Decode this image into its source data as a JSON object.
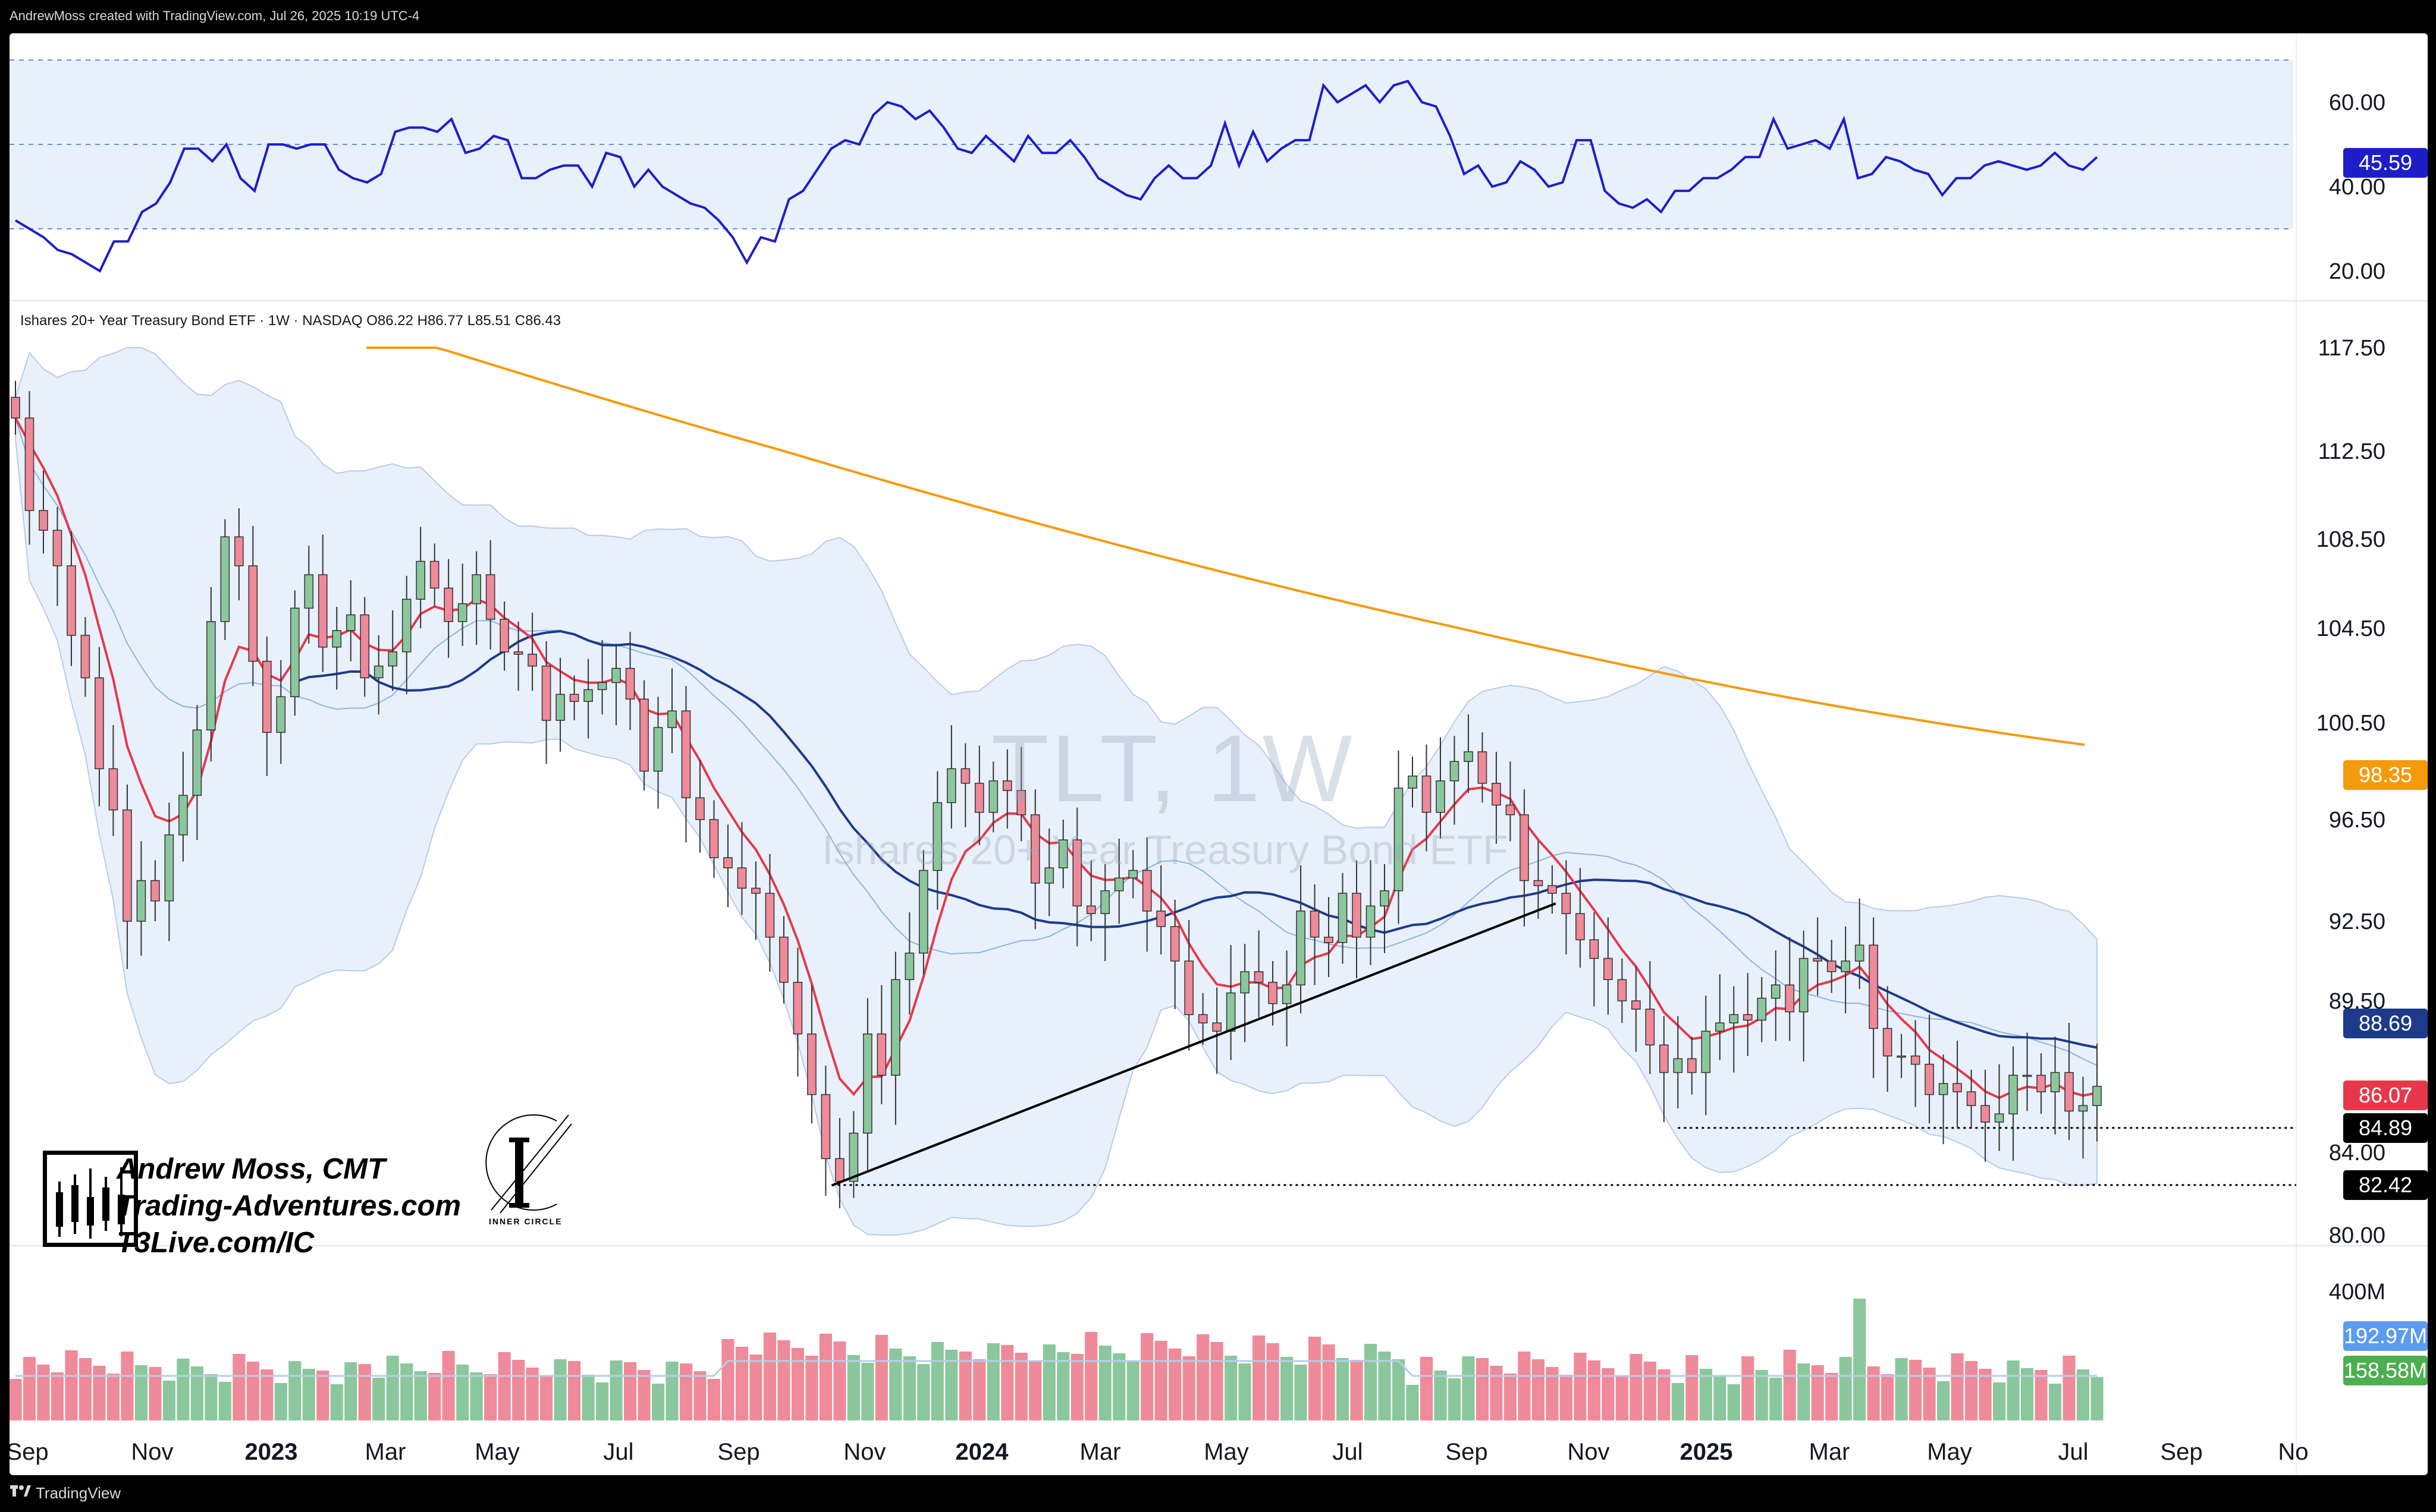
{
  "header": {
    "credit": "AndrewMoss created with TradingView.com, Jul 26, 2025 10:19 UTC-4"
  },
  "symbol_line": {
    "text": "Ishares 20+ Year Treasury Bond ETF · 1W · NASDAQ  O86.22  H86.77  L85.51  C86.43"
  },
  "watermark": {
    "main": "TLT, 1W",
    "sub": "Ishares 20+ Year Treasury Bond ETF"
  },
  "branding": {
    "line1": "Andrew Moss, CMT",
    "line2": "Trading-Adventures.com",
    "line3": "T3Live.com/IC",
    "inner_circle": "INNER CIRCLE"
  },
  "footer": {
    "label": "TradingView"
  },
  "colors": {
    "up": "#8bc79c",
    "down": "#ef8a9a",
    "ema_red": "#e5394b",
    "sma_navy": "#1e3a8a",
    "sma_orange": "#f59a0b",
    "rsi_line": "#1e1ec8",
    "band_fill": "#e8f0fb"
  },
  "chart_data": [
    {
      "type": "line",
      "title": "RSI",
      "y_ticks": [
        "60.00",
        "40.00",
        "20.00"
      ],
      "ylim": [
        15,
        75
      ],
      "levels": [
        70,
        50,
        30
      ],
      "last_value": "45.59",
      "series": [
        {
          "values": [
            32,
            30,
            28,
            25,
            24,
            22,
            20,
            27,
            27,
            34,
            36,
            41,
            49,
            49,
            46,
            50,
            42,
            39,
            50,
            50,
            49,
            50,
            50,
            44,
            42,
            41,
            43,
            53,
            54,
            54,
            53,
            56,
            48,
            49,
            52,
            51,
            42,
            42,
            44,
            45,
            45,
            40,
            48,
            47,
            40,
            44,
            40,
            38,
            36,
            35,
            32,
            28,
            22,
            28,
            27,
            37,
            39,
            44,
            49,
            51,
            50,
            57,
            60,
            59,
            56,
            58,
            54,
            49,
            48,
            52,
            49,
            46,
            52,
            48,
            48,
            51,
            47,
            42,
            40,
            38,
            37,
            42,
            45,
            42,
            42,
            45,
            55,
            45,
            53,
            46,
            49,
            51,
            51,
            64,
            60,
            62,
            64,
            60,
            64,
            65,
            60,
            59,
            52,
            43,
            45,
            40,
            41,
            46,
            44,
            40,
            41,
            51,
            51,
            39,
            36,
            35,
            37,
            34,
            39,
            39,
            42,
            42,
            44,
            47,
            47,
            56,
            49,
            50,
            51,
            49,
            56,
            42,
            43,
            47,
            46,
            44,
            43,
            38,
            42,
            42,
            45,
            46,
            45,
            44,
            45,
            48,
            45,
            44,
            47
          ]
        }
      ]
    },
    {
      "type": "candlestick",
      "title": "TLT, 1W",
      "x_ticks": [
        "Sep",
        "Nov",
        "2023",
        "Mar",
        "May",
        "Jul",
        "Sep",
        "Nov",
        "2024",
        "Mar",
        "May",
        "Jul",
        "Sep",
        "Nov",
        "2025",
        "Mar",
        "May",
        "Jul",
        "Sep",
        "No"
      ],
      "y_ticks": [
        "117.50",
        "112.50",
        "108.50",
        "104.50",
        "100.50",
        "96.50",
        "92.50",
        "89.50",
        "84.00",
        "80.00"
      ],
      "ylim": [
        80,
        117.5
      ],
      "closes": [
        114.1,
        109.8,
        108.9,
        107.3,
        104.2,
        102.4,
        98.6,
        96.9,
        92.5,
        94.1,
        93.3,
        95.9,
        97.5,
        100.2,
        104.8,
        108.6,
        107.3,
        103.1,
        100.1,
        101.6,
        105.4,
        106.9,
        103.7,
        104.4,
        105.1,
        102.4,
        102.9,
        103.5,
        105.8,
        107.5,
        106.3,
        104.8,
        105.6,
        106.9,
        104.9,
        103.5,
        103.4,
        102.9,
        100.6,
        101.7,
        101.4,
        101.9,
        102.2,
        102.8,
        101.5,
        98.5,
        100.3,
        101.0,
        97.4,
        96.5,
        95.0,
        94.6,
        93.8,
        93.6,
        91.9,
        90.2,
        88.3,
        86.1,
        83.7,
        82.6,
        84.7,
        88.3,
        86.8,
        90.3,
        91.3,
        94.5,
        97.2,
        98.6,
        98.0,
        96.8,
        98.1,
        97.7,
        96.7,
        94.0,
        94.6,
        95.7,
        93.1,
        92.8,
        93.7,
        94.2,
        94.5,
        92.9,
        92.3,
        91.0,
        89.0,
        88.7,
        88.4,
        89.8,
        90.6,
        90.2,
        89.4,
        90.1,
        92.9,
        91.9,
        91.7,
        93.6,
        91.9,
        93.1,
        93.7,
        97.8,
        98.3,
        96.8,
        98.1,
        98.9,
        99.3,
        98.0,
        97.1,
        96.7,
        94.1,
        93.9,
        93.6,
        92.8,
        91.8,
        91.1,
        90.3,
        89.5,
        89.2,
        87.9,
        86.9,
        87.4,
        86.9,
        88.4,
        88.7,
        89.0,
        88.8,
        89.6,
        90.1,
        89.1,
        91.1,
        91.0,
        90.6,
        91.0,
        91.6,
        88.5,
        87.5,
        87.5,
        87.2,
        86.1,
        86.5,
        86.2,
        85.7,
        85.1,
        85.4,
        86.8,
        86.8,
        86.2,
        86.9,
        85.5,
        85.7,
        86.4
      ],
      "volume": {
        "y_ticks": [
          "400M"
        ],
        "last_value": "192.97M",
        "avg_value": "158.58M",
        "spike_label": "400M"
      },
      "series": [
        {
          "name": "EMA",
          "last_value": "86.07"
        },
        {
          "name": "SMA",
          "last_value": "88.69"
        },
        {
          "name": "SMA",
          "last_value": "98.35"
        }
      ],
      "price_tags": [
        "98.35",
        "88.69",
        "86.07",
        "84.89",
        "82.42"
      ],
      "annotations": [
        {
          "type": "trendline",
          "from": {
            "date": "2023-10",
            "value": 82.4
          },
          "to": {
            "date": "2024-10",
            "value": 93.2
          }
        },
        {
          "type": "horizontal-dotted",
          "value": 84.89
        },
        {
          "type": "horizontal-dotted",
          "value": 82.42
        }
      ]
    }
  ]
}
